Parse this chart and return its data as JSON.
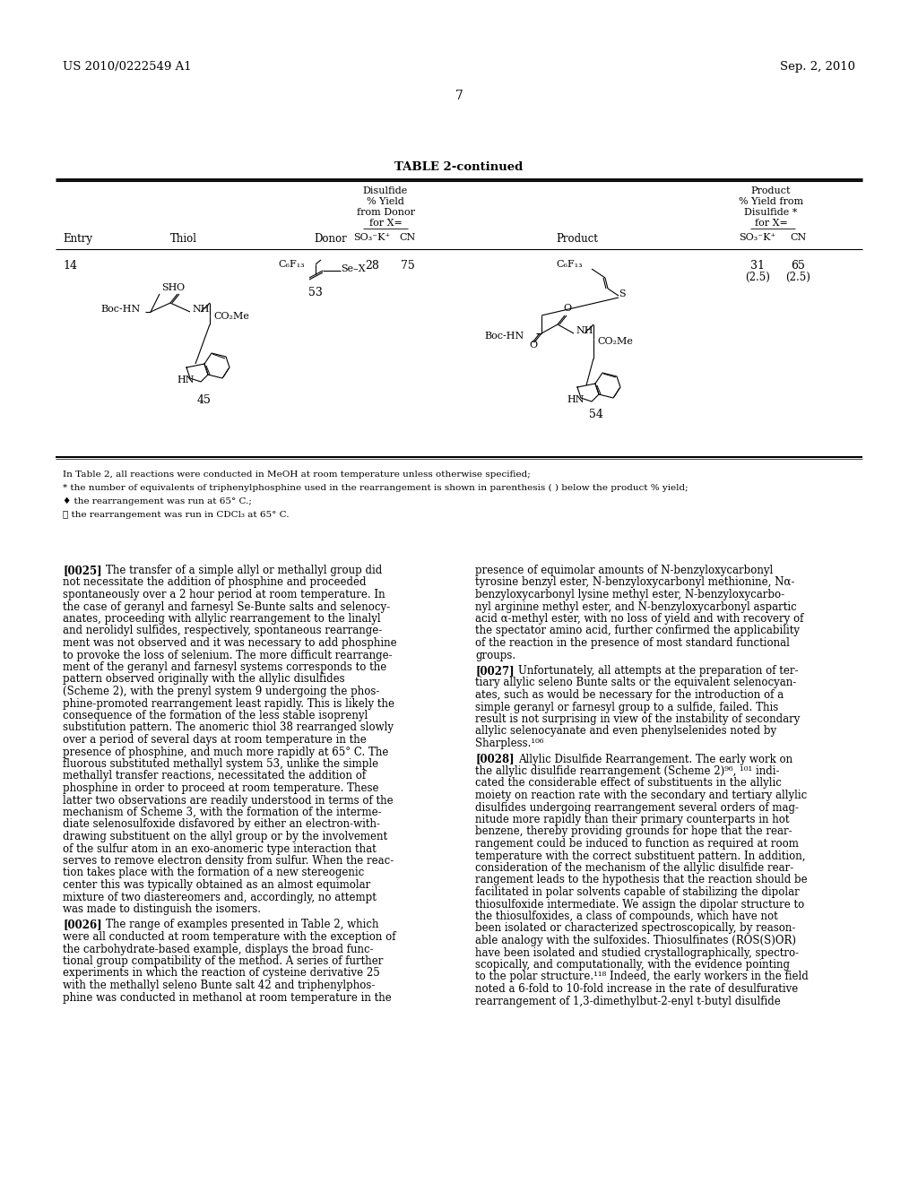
{
  "bg_color": "#ffffff",
  "header_left": "US 2010/0222549 A1",
  "header_right": "Sep. 2, 2010",
  "page_number": "7",
  "table_title": "TABLE 2-continued",
  "entry_number": "14",
  "disulfide_so3k_val": "28",
  "disulfide_cn_val": "75",
  "product_so3k_val": "31\n(2.5)",
  "product_cn_val": "65\n(2.5)",
  "compound_45": "45",
  "compound_53": "53",
  "compound_54": "54",
  "footnote1": "In Table 2, all reactions were conducted in MeOH at room temperature unless otherwise specified;",
  "footnote2": "* the number of equivalents of triphenylphosphine used in the rearrangement is shown in parenthesis ( ) below the product % yield;",
  "footnote3": "♦ the rearrangement was run at 65° C.;",
  "footnote4": "★ the rearrangement was run in CDCl₃ at 65° C.",
  "p0025_text": "[0025] The transfer of a simple allyl or methallyl group did\nnot necessitate the addition of phosphine and proceeded\nspontaneously over a 2 hour period at room temperature. In\nthe case of geranyl and farnesyl Se-Bunte salts and selenocy-\nanates, proceeding with allylic rearrangement to the linalyl\nand nerolidyl sulfides, respectively, spontaneous rearrange-\nment was not observed and it was necessary to add phosphine\nto provoke the loss of selenium. The more difficult rearrange-\nment of the geranyl and farnesyl systems corresponds to the\npattern observed originally with the allylic disulfides\n(Scheme 2), with the prenyl system 9 undergoing the phos-\nphine-promoted rearrangement least rapidly. This is likely the\nconsequence of the formation of the less stable isoprenyl\nsubstitution pattern. The anomeric thiol 38 rearranged slowly\nover a period of several days at room temperature in the\npresence of phosphine, and much more rapidly at 65° C. The\nfluorous substituted methallyl system 53, unlike the simple\nmethallyl transfer reactions, necessitated the addition of\nphosphine in order to proceed at room temperature. These\nlatter two observations are readily understood in terms of the\nmechanism of Scheme 3, with the formation of the interme-\ndiate selenosulfoxide disfavored by either an electron-with-\ndrawing substituent on the allyl group or by the involvement\nof the sulfur atom in an exo-anomeric type interaction that\nserves to remove electron density from sulfur. When the reac-\ntion takes place with the formation of a new stereogenic\ncenter this was typically obtained as an almost equimolar\nmixture of two diastereomers and, accordingly, no attempt\nwas made to distinguish the isomers.",
  "p0026_text": "[0026] The range of examples presented in Table 2, which\nwere all conducted at room temperature with the exception of\nthe carbohydrate-based example, displays the broad func-\ntional group compatibility of the method. A series of further\nexperiments in which the reaction of cysteine derivative 25\nwith the methallyl seleno Bunte salt 42 and triphenylphos-\nphine was conducted in methanol at room temperature in the",
  "p_right1_text": "presence of equimolar amounts of N-benzyloxycarbonyl\ntyrosine benzyl ester, N-benzyloxycarbonyl methionine, Nα-\nbenzyloxycarbonyl lysine methyl ester, N-benzyloxycarbo-\nnyl arginine methyl ester, and N-benzyloxycarbonyl aspartic\nacid α-methyl ester, with no loss of yield and with recovery of\nthe spectator amino acid, further confirmed the applicability\nof the reaction in the presence of most standard functional\ngroups.",
  "p0027_text": "[0027] Unfortunately, all attempts at the preparation of ter-\ntiary allylic seleno Bunte salts or the equivalent selenocyan-\nates, such as would be necessary for the introduction of a\nsimple geranyl or farnesyl group to a sulfide, failed. This\nresult is not surprising in view of the instability of secondary\nallylic selenocyanate and even phenylselenides noted by\nSharpless.¹⁰⁶",
  "p0028_text": "[0028] Allylic Disulfide Rearrangement. The early work on\nthe allylic disulfide rearrangement (Scheme 2)⁹⁶, ¹⁰¹ indi-\ncated the considerable effect of substituents in the allylic\nmoiety on reaction rate with the secondary and tertiary allylic\ndisulfides undergoing rearrangement several orders of mag-\nnitude more rapidly than their primary counterparts in hot\nbenzene, thereby providing grounds for hope that the rear-\nrangement could be induced to function as required at room\ntemperature with the correct substituent pattern. In addition,\nconsideration of the mechanism of the allylic disulfide rear-\nrangement leads to the hypothesis that the reaction should be\nfacilitated in polar solvents capable of stabilizing the dipolar\nthiosulfoxide intermediate. We assign the dipolar structure to\nthe thiosulfoxides, a class of compounds, which have not\nbeen isolated or characterized spectroscopically, by reason-\nable analogy with the sulfoxides. Thiosulfinates (ROS(S)OR)\nhave been isolated and studied crystallographically, spectro-\nscopically, and computationally, with the evidence pointing\nto the polar structure.¹¹⁸ Indeed, the early workers in the field\nnoted a 6-fold to 10-fold increase in the rate of desulfurative\nrearrangement of 1,3-dimethylbut-2-enyl t-butyl disulfide"
}
